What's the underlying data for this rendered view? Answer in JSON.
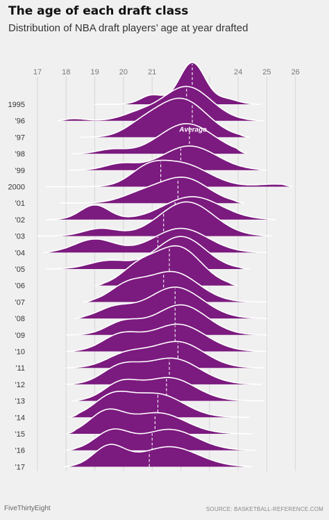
{
  "header": {
    "title": "The age of each draft class",
    "subtitle": "Distribution of NBA draft players’ age at year drafted"
  },
  "footer": {
    "brand": "FiveThirtyEight",
    "source": "SOURCE: BASKETBALL-REFERENCE.COM"
  },
  "colors": {
    "ridge_fill": "#7b1a7f",
    "ridge_outline": "#ffffff",
    "background": "#f0f0f0",
    "grid": "#d6d6d6"
  },
  "chart_data": {
    "type": "ridgeline",
    "title": "The age of each draft class",
    "subtitle": "Distribution of NBA draft players’ age at year drafted",
    "xlabel": "",
    "ylabel": "",
    "x_range": [
      17,
      26
    ],
    "x_ticks": [
      17,
      18,
      19,
      20,
      21,
      22,
      23,
      24,
      25,
      26
    ],
    "x_tick_labels": [
      "17",
      "18",
      "19",
      "20",
      "21",
      "",
      "",
      "24",
      "25",
      "26"
    ],
    "grid": "vertical lines at each year",
    "annotation": {
      "text": "Average",
      "year": "'97"
    },
    "series": [
      {
        "label": "1995",
        "mean": 22.4,
        "range": [
          19.0,
          24.8
        ],
        "components": [
          [
            22.4,
            0.45,
            1.0
          ],
          [
            21.0,
            0.4,
            0.22
          ],
          [
            23.6,
            0.4,
            0.12
          ]
        ]
      },
      {
        "label": "'96",
        "mean": 22.2,
        "range": [
          17.7,
          24.9
        ],
        "components": [
          [
            22.2,
            0.85,
            0.82
          ],
          [
            20.5,
            0.6,
            0.15
          ],
          [
            18.3,
            0.4,
            0.05
          ]
        ]
      },
      {
        "label": "'97",
        "mean": 22.4,
        "range": [
          18.5,
          24.4
        ],
        "components": [
          [
            22.0,
            0.9,
            0.92
          ],
          [
            20.6,
            0.6,
            0.2
          ]
        ]
      },
      {
        "label": "'98",
        "mean": 22.3,
        "range": [
          18.2,
          24.3
        ],
        "components": [
          [
            22.2,
            0.95,
            0.72
          ],
          [
            19.6,
            0.5,
            0.1
          ]
        ]
      },
      {
        "label": "'99",
        "mean": 22.0,
        "range": [
          18.1,
          25.0
        ],
        "components": [
          [
            22.3,
            0.95,
            0.58
          ],
          [
            19.9,
            0.55,
            0.15
          ]
        ]
      },
      {
        "label": "2000",
        "mean": 21.3,
        "range": [
          17.3,
          25.9
        ],
        "components": [
          [
            22.0,
            0.95,
            0.55
          ],
          [
            20.8,
            0.6,
            0.3
          ],
          [
            25.3,
            0.6,
            0.06
          ]
        ]
      },
      {
        "label": "'01",
        "mean": 21.9,
        "range": [
          17.8,
          24.2
        ],
        "components": [
          [
            22.1,
            0.85,
            0.6
          ],
          [
            20.6,
            0.7,
            0.2
          ]
        ]
      },
      {
        "label": "'02",
        "mean": 21.8,
        "range": [
          17.3,
          25.3
        ],
        "components": [
          [
            22.4,
            1.0,
            0.55
          ],
          [
            19.0,
            0.5,
            0.35
          ]
        ]
      },
      {
        "label": "'03",
        "mean": 21.4,
        "range": [
          17.0,
          25.2
        ],
        "components": [
          [
            22.2,
            0.95,
            0.82
          ],
          [
            19.2,
            0.6,
            0.18
          ]
        ]
      },
      {
        "label": "'04",
        "mean": 21.2,
        "range": [
          17.2,
          25.0
        ],
        "components": [
          [
            22.0,
            0.95,
            0.58
          ],
          [
            19.0,
            0.7,
            0.32
          ]
        ]
      },
      {
        "label": "'05",
        "mean": 21.0,
        "range": [
          17.3,
          24.4
        ],
        "components": [
          [
            22.0,
            0.85,
            0.78
          ],
          [
            19.5,
            0.7,
            0.2
          ]
        ]
      },
      {
        "label": "'06",
        "mean": 21.6,
        "range": [
          19.0,
          24.0
        ],
        "components": [
          [
            21.9,
            0.8,
            0.92
          ],
          [
            20.5,
            0.6,
            0.4
          ]
        ]
      },
      {
        "label": "'07",
        "mean": 21.4,
        "range": [
          18.6,
          25.0
        ],
        "components": [
          [
            21.7,
            0.9,
            0.72
          ],
          [
            20.1,
            0.6,
            0.35
          ]
        ]
      },
      {
        "label": "'08",
        "mean": 21.8,
        "range": [
          18.3,
          25.0
        ],
        "components": [
          [
            21.8,
            0.95,
            0.75
          ],
          [
            19.7,
            0.6,
            0.25
          ]
        ]
      },
      {
        "label": "'09",
        "mean": 21.8,
        "range": [
          18.0,
          25.0
        ],
        "components": [
          [
            22.0,
            0.9,
            0.72
          ],
          [
            20.0,
            0.6,
            0.3
          ]
        ]
      },
      {
        "label": "'10",
        "mean": 21.8,
        "range": [
          18.0,
          25.0
        ],
        "components": [
          [
            21.9,
            0.95,
            0.65
          ],
          [
            19.9,
            0.65,
            0.38
          ]
        ]
      },
      {
        "label": "'11",
        "mean": 21.9,
        "range": [
          18.0,
          24.9
        ],
        "components": [
          [
            21.9,
            0.9,
            0.62
          ],
          [
            20.1,
            0.7,
            0.32
          ]
        ]
      },
      {
        "label": "'12",
        "mean": 21.6,
        "range": [
          18.0,
          24.8
        ],
        "components": [
          [
            21.7,
            0.95,
            0.62
          ],
          [
            19.9,
            0.65,
            0.4
          ]
        ]
      },
      {
        "label": "'13",
        "mean": 21.5,
        "range": [
          18.2,
          24.9
        ],
        "components": [
          [
            21.6,
            0.9,
            0.55
          ],
          [
            19.9,
            0.6,
            0.4
          ]
        ]
      },
      {
        "label": "'14",
        "mean": 21.2,
        "range": [
          18.1,
          24.4
        ],
        "components": [
          [
            21.2,
            0.9,
            0.55
          ],
          [
            19.6,
            0.65,
            0.48
          ]
        ]
      },
      {
        "label": "'15",
        "mean": 21.1,
        "range": [
          18.0,
          24.5
        ],
        "components": [
          [
            21.2,
            0.95,
            0.5
          ],
          [
            19.4,
            0.6,
            0.5
          ]
        ]
      },
      {
        "label": "'16",
        "mean": 21.0,
        "range": [
          18.0,
          24.6
        ],
        "components": [
          [
            21.6,
            0.95,
            0.5
          ],
          [
            19.6,
            0.6,
            0.45
          ]
        ]
      },
      {
        "label": "'17",
        "mean": 20.9,
        "range": [
          17.9,
          24.5
        ],
        "components": [
          [
            21.6,
            1.0,
            0.48
          ],
          [
            19.5,
            0.55,
            0.48
          ]
        ]
      }
    ]
  }
}
